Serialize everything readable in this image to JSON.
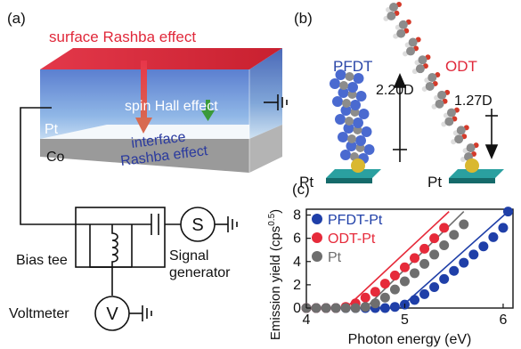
{
  "panel_a": {
    "label": "(a)",
    "surface_text": "surface Rashba effect",
    "spin_hall_text": "spin Hall effect",
    "interface_text": "interface",
    "interface_rashba_text": "Rashba effect",
    "pt_layer": "Pt",
    "co_layer": "Co",
    "bias_tee": "Bias tee",
    "signal_symbol": "S",
    "signal_line1": "Signal",
    "signal_line2": "generator",
    "voltmeter": "Voltmeter",
    "voltmeter_symbol": "V",
    "colors": {
      "surface": "#e0283a",
      "interface": "#2a3a9e",
      "spin_hall": "#ffffff",
      "red_arrow": "#e36a55",
      "green_arrow": "#3a9a3a",
      "co_layer": "#8a8a8a"
    }
  },
  "panel_b": {
    "label": "(b)",
    "molecule1": "PFDT",
    "molecule2": "ODT",
    "dipole1": "2.20D",
    "dipole2": "1.27D",
    "substrate1": "Pt",
    "substrate2": "Pt",
    "colors": {
      "pfdt": "#2a46a8",
      "odt": "#e0283a",
      "fluorine": "#4a6ad0",
      "carbon": "#8c8c8c",
      "oxygen": "#d43a2a",
      "sulfur": "#e0c040",
      "substrate": "#1a8a8a"
    }
  },
  "panel_c": {
    "label": "(c)",
    "chart_data": {
      "type": "scatter",
      "xlabel": "Photon energy (eV)",
      "ylabel": "Emission yield (cps",
      "ylabel_sup": "0.5",
      "ylabel_close": ")",
      "xlim": [
        4.0,
        6.1
      ],
      "ylim": [
        0,
        8.5
      ],
      "xticks": [
        "4",
        "5",
        "6"
      ],
      "yticks": [
        "0",
        "2",
        "4",
        "6",
        "8"
      ],
      "legend_position": "top-left",
      "series": [
        {
          "name": "PFDT-Pt",
          "color": "#1f3fa8",
          "points": [
            [
              4.0,
              0
            ],
            [
              4.1,
              0
            ],
            [
              4.2,
              0
            ],
            [
              4.3,
              0
            ],
            [
              4.4,
              0
            ],
            [
              4.5,
              0
            ],
            [
              4.6,
              0
            ],
            [
              4.7,
              0
            ],
            [
              4.8,
              0
            ],
            [
              4.9,
              0.1
            ],
            [
              5.0,
              0.3
            ],
            [
              5.1,
              0.7
            ],
            [
              5.2,
              1.2
            ],
            [
              5.3,
              1.8
            ],
            [
              5.4,
              2.5
            ],
            [
              5.5,
              3.2
            ],
            [
              5.6,
              3.9
            ],
            [
              5.7,
              4.6
            ],
            [
              5.8,
              5.3
            ],
            [
              5.9,
              6.1
            ],
            [
              6.0,
              6.9
            ],
            [
              6.05,
              8.3
            ]
          ],
          "fit": [
            [
              4.95,
              0
            ],
            [
              6.05,
              8.3
            ]
          ]
        },
        {
          "name": "ODT-Pt",
          "color": "#e62a3a",
          "points": [
            [
              4.0,
              0
            ],
            [
              4.1,
              0
            ],
            [
              4.2,
              0
            ],
            [
              4.3,
              0
            ],
            [
              4.4,
              0.1
            ],
            [
              4.5,
              0.4
            ],
            [
              4.6,
              0.9
            ],
            [
              4.7,
              1.4
            ],
            [
              4.8,
              2.1
            ],
            [
              4.9,
              2.8
            ],
            [
              5.0,
              3.5
            ],
            [
              5.1,
              4.3
            ],
            [
              5.2,
              5.1
            ],
            [
              5.3,
              6.0
            ],
            [
              5.4,
              6.9
            ]
          ],
          "fit": [
            [
              4.4,
              0
            ],
            [
              5.45,
              8.3
            ]
          ]
        },
        {
          "name": "Pt",
          "color": "#6e6e6e",
          "points": [
            [
              4.0,
              0
            ],
            [
              4.1,
              0
            ],
            [
              4.2,
              0
            ],
            [
              4.3,
              0
            ],
            [
              4.4,
              0
            ],
            [
              4.5,
              0
            ],
            [
              4.6,
              0.1
            ],
            [
              4.7,
              0.4
            ],
            [
              4.8,
              0.9
            ],
            [
              4.9,
              1.6
            ],
            [
              5.0,
              2.3
            ],
            [
              5.1,
              3.0
            ],
            [
              5.2,
              3.8
            ],
            [
              5.3,
              4.6
            ],
            [
              5.4,
              5.4
            ],
            [
              5.5,
              6.3
            ],
            [
              5.6,
              7.2
            ]
          ],
          "fit": [
            [
              4.6,
              0
            ],
            [
              5.6,
              8.3
            ]
          ]
        }
      ]
    }
  }
}
